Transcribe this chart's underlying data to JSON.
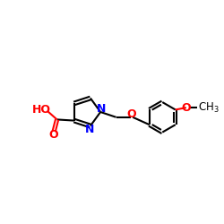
{
  "bg_color": "#ffffff",
  "bond_color": "#000000",
  "N_color": "#0000ff",
  "O_color": "#ff0000",
  "line_width": 1.5,
  "font_size": 8.5,
  "fig_size": [
    2.5,
    2.5
  ],
  "dpi": 100,
  "xlim": [
    0,
    10
  ],
  "ylim": [
    2,
    8
  ]
}
